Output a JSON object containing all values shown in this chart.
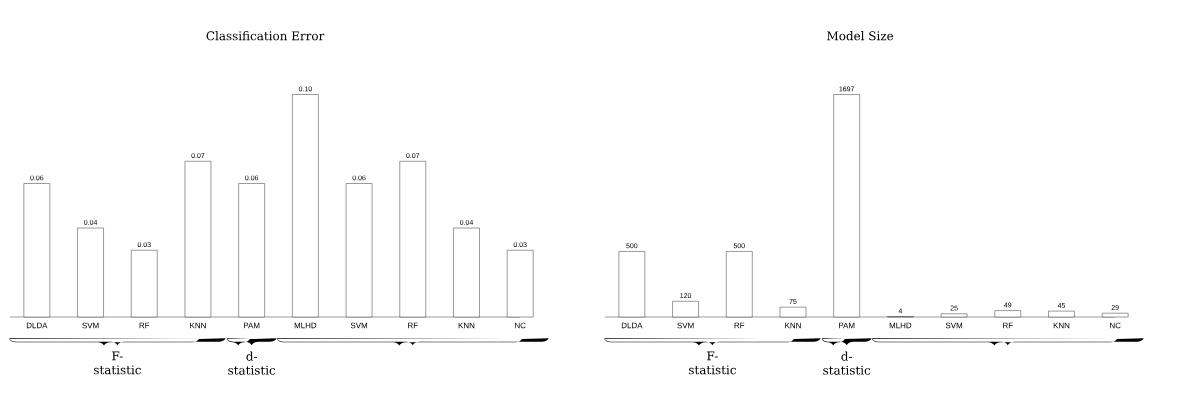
{
  "chart_data": [
    {
      "type": "bar",
      "title": "Classification Error",
      "categories": [
        "DLDA",
        "SVM",
        "RF",
        "KNN",
        "PAM",
        "MLHD",
        "SVM",
        "RF",
        "KNN",
        "NC"
      ],
      "values": [
        0.06,
        0.04,
        0.03,
        0.07,
        0.06,
        0.1,
        0.06,
        0.07,
        0.04,
        0.03
      ],
      "value_labels": [
        "0.06",
        "0.04",
        "0.03",
        "0.07",
        "0.06",
        "0.10",
        "0.06",
        "0.07",
        "0.04",
        "0.03"
      ],
      "color": "#ffffff",
      "annotations": [
        "F-statistic",
        "d-statistic"
      ]
    },
    {
      "type": "bar",
      "title": "Model Size",
      "categories": [
        "DLDA",
        "SVM",
        "RF",
        "KNN",
        "PAM",
        "MLHD",
        "SVM",
        "RF",
        "KNN",
        "NC"
      ],
      "values": [
        500,
        120,
        500,
        75,
        1697,
        4,
        25,
        49,
        45,
        29
      ],
      "value_labels": [
        "500",
        "120",
        "500",
        "75",
        "1697",
        "4",
        "25",
        "49",
        "45",
        "29"
      ],
      "color": "#ffffff",
      "annotations": [
        "F-statistic",
        "d-statistic"
      ]
    }
  ]
}
